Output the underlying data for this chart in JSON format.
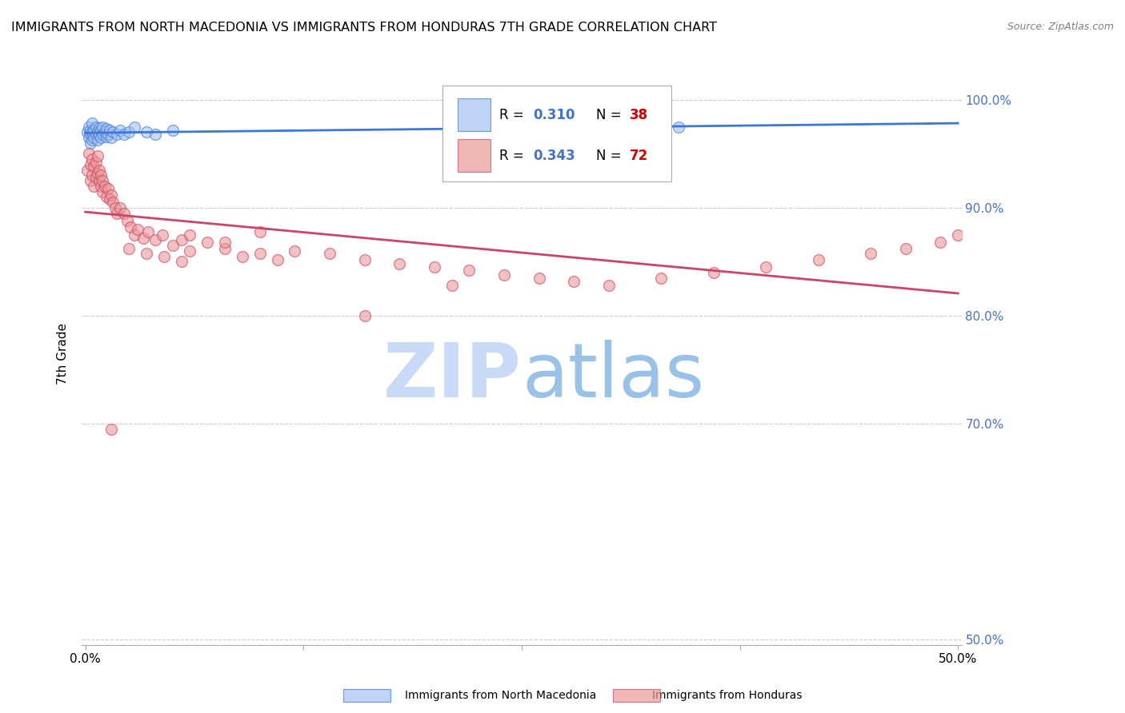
{
  "title": "IMMIGRANTS FROM NORTH MACEDONIA VS IMMIGRANTS FROM HONDURAS 7TH GRADE CORRELATION CHART",
  "source": "Source: ZipAtlas.com",
  "ylabel": "7th Grade",
  "ytick_labels": [
    "100.0%",
    "90.0%",
    "80.0%",
    "70.0%",
    "50.0%"
  ],
  "ytick_values": [
    1.0,
    0.9,
    0.8,
    0.7,
    0.5
  ],
  "ylim": [
    0.495,
    1.035
  ],
  "xlim": [
    -0.002,
    0.502
  ],
  "legend_blue_r": "0.310",
  "legend_blue_n": "38",
  "legend_pink_r": "0.343",
  "legend_pink_n": "72",
  "legend_label_blue": "Immigrants from North Macedonia",
  "legend_label_pink": "Immigrants from Honduras",
  "blue_face_color": "#a4c2f4",
  "blue_edge_color": "#3c78d8",
  "pink_face_color": "#ea9999",
  "pink_edge_color": "#cc4466",
  "blue_line_color": "#3c78d8",
  "pink_line_color": "#cc4466",
  "r_color": "#4472c4",
  "n_color": "#cc0000",
  "tick_color": "#4472c4",
  "watermark_zip_color": "#c9daf8",
  "watermark_atlas_color": "#6fa8dc",
  "blue_scatter_x": [
    0.001,
    0.002,
    0.002,
    0.003,
    0.003,
    0.003,
    0.004,
    0.004,
    0.004,
    0.005,
    0.005,
    0.006,
    0.006,
    0.007,
    0.007,
    0.008,
    0.008,
    0.009,
    0.009,
    0.01,
    0.01,
    0.011,
    0.012,
    0.012,
    0.013,
    0.014,
    0.015,
    0.016,
    0.018,
    0.02,
    0.022,
    0.025,
    0.028,
    0.035,
    0.04,
    0.05,
    0.32,
    0.34
  ],
  "blue_scatter_y": [
    0.97,
    0.975,
    0.965,
    0.96,
    0.968,
    0.972,
    0.963,
    0.97,
    0.978,
    0.965,
    0.972,
    0.968,
    0.975,
    0.963,
    0.97,
    0.967,
    0.974,
    0.965,
    0.972,
    0.968,
    0.975,
    0.97,
    0.966,
    0.973,
    0.968,
    0.972,
    0.965,
    0.97,
    0.968,
    0.972,
    0.968,
    0.97,
    0.975,
    0.97,
    0.968,
    0.972,
    0.975,
    0.975
  ],
  "pink_scatter_x": [
    0.001,
    0.002,
    0.003,
    0.003,
    0.004,
    0.004,
    0.005,
    0.005,
    0.006,
    0.006,
    0.007,
    0.007,
    0.008,
    0.008,
    0.009,
    0.009,
    0.01,
    0.01,
    0.011,
    0.012,
    0.013,
    0.014,
    0.015,
    0.016,
    0.017,
    0.018,
    0.02,
    0.022,
    0.024,
    0.026,
    0.028,
    0.03,
    0.033,
    0.036,
    0.04,
    0.044,
    0.05,
    0.055,
    0.06,
    0.07,
    0.08,
    0.09,
    0.1,
    0.11,
    0.12,
    0.14,
    0.16,
    0.18,
    0.2,
    0.22,
    0.24,
    0.26,
    0.28,
    0.3,
    0.33,
    0.36,
    0.39,
    0.42,
    0.45,
    0.47,
    0.49,
    0.5,
    0.16,
    0.21,
    0.06,
    0.08,
    0.1,
    0.055,
    0.045,
    0.035,
    0.025,
    0.015
  ],
  "pink_scatter_y": [
    0.935,
    0.95,
    0.925,
    0.94,
    0.93,
    0.945,
    0.92,
    0.938,
    0.928,
    0.942,
    0.932,
    0.948,
    0.925,
    0.935,
    0.92,
    0.93,
    0.915,
    0.925,
    0.92,
    0.91,
    0.918,
    0.908,
    0.912,
    0.905,
    0.9,
    0.895,
    0.9,
    0.895,
    0.888,
    0.882,
    0.875,
    0.88,
    0.872,
    0.878,
    0.87,
    0.875,
    0.865,
    0.87,
    0.875,
    0.868,
    0.862,
    0.855,
    0.858,
    0.852,
    0.86,
    0.858,
    0.852,
    0.848,
    0.845,
    0.842,
    0.838,
    0.835,
    0.832,
    0.828,
    0.835,
    0.84,
    0.845,
    0.852,
    0.858,
    0.862,
    0.868,
    0.875,
    0.8,
    0.828,
    0.86,
    0.868,
    0.878,
    0.85,
    0.855,
    0.858,
    0.862,
    0.695
  ]
}
